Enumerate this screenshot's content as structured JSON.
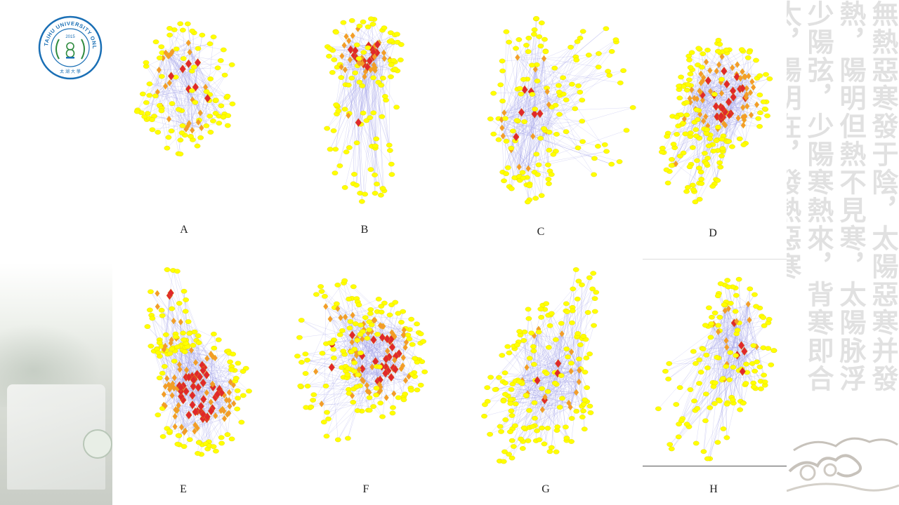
{
  "logo": {
    "arc_text": "TAIHU UNIVERSITY ONLINE",
    "year": "2015",
    "bottom_text": "太 湖 大 學",
    "primary_color": "#1a6fb5",
    "accent_color": "#2e8b3e"
  },
  "calligraphy_text": "無熱惡寒發于陰，太陽惡寒并發熱，陽明但熱不見寒，太陽脉浮少陽弦，少陽寒熱來，背寒即合太，陽明在，發熱惡寒",
  "panels": [
    {
      "id": "A",
      "label": "A"
    },
    {
      "id": "B",
      "label": "B"
    },
    {
      "id": "C",
      "label": "C"
    },
    {
      "id": "D",
      "label": "D"
    },
    {
      "id": "E",
      "label": "E"
    },
    {
      "id": "F",
      "label": "F"
    },
    {
      "id": "G",
      "label": "G"
    },
    {
      "id": "H",
      "label": "H"
    }
  ],
  "node_colors": {
    "low": "#ffff00",
    "mid": "#f59a2b",
    "high": "#e0282c"
  },
  "edge_color": "#9a9ae8"
}
